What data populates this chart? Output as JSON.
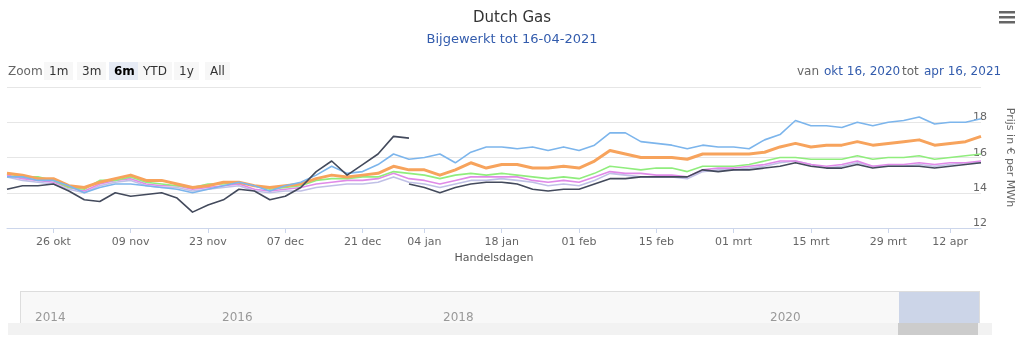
{
  "chart_data": {
    "type": "line",
    "title": "Dutch Gas",
    "subtitle": "Bijgewerkt tot 16-04-2021",
    "xlabel": "Handelsdagen",
    "ylabel": "Prijs in € per MWh",
    "categories": [
      null,
      null,
      null,
      "26 okt",
      null,
      null,
      null,
      null,
      "09 nov",
      null,
      null,
      null,
      null,
      "23 nov",
      null,
      null,
      null,
      null,
      "07 dec",
      null,
      null,
      null,
      null,
      "21 dec",
      null,
      null,
      null,
      "04 jan",
      null,
      null,
      null,
      null,
      "18 jan",
      null,
      null,
      null,
      null,
      "01 feb",
      null,
      null,
      null,
      null,
      "15 feb",
      null,
      null,
      null,
      null,
      "01 mrt",
      null,
      null,
      null,
      null,
      "15 mrt",
      null,
      null,
      null,
      null,
      "29 mrt",
      null,
      null,
      null,
      "12 apr",
      null,
      null
    ],
    "series": [
      {
        "color": "#c0c0e6",
        "values": [
          14.9,
          14.7,
          14.6,
          14.5,
          14.2,
          14.0,
          14.4,
          14.6,
          14.7,
          14.4,
          14.3,
          14.3,
          14.1,
          14.2,
          14.3,
          14.4,
          14.1,
          14.0,
          14.1,
          14.1,
          14.3,
          14.4,
          14.5,
          14.5,
          14.6,
          14.9,
          14.6,
          14.5,
          14.3,
          14.5,
          14.7,
          14.7,
          14.8,
          14.7,
          14.6,
          14.4,
          14.5,
          14.4,
          14.7,
          15.1,
          15.0,
          14.9,
          14.9,
          14.9,
          14.8,
          15.2,
          15.3,
          15.3,
          15.4,
          15.5,
          15.7,
          15.8,
          15.6,
          15.4,
          15.5,
          15.7,
          15.5,
          15.5,
          15.5,
          15.6,
          15.5,
          15.6,
          15.7,
          15.7
        ]
      },
      {
        "color": "#e08ae8",
        "values": [
          15.0,
          14.8,
          14.7,
          14.6,
          14.3,
          14.1,
          14.5,
          14.7,
          14.8,
          14.5,
          14.4,
          14.4,
          14.2,
          14.3,
          14.4,
          14.5,
          14.2,
          14.1,
          14.2,
          14.3,
          14.5,
          14.6,
          14.7,
          14.7,
          14.8,
          15.1,
          14.8,
          14.7,
          14.5,
          14.7,
          14.9,
          14.9,
          14.9,
          14.9,
          14.7,
          14.6,
          14.7,
          14.6,
          14.9,
          15.2,
          15.1,
          15.1,
          15.0,
          15.0,
          14.9,
          15.3,
          15.4,
          15.4,
          15.5,
          15.6,
          15.8,
          15.8,
          15.6,
          15.5,
          15.6,
          15.8,
          15.5,
          15.6,
          15.6,
          15.7,
          15.6,
          15.7,
          15.7,
          15.8
        ]
      },
      {
        "color": "#90ed7d",
        "values": [
          15.1,
          14.9,
          14.9,
          14.7,
          14.3,
          14.2,
          14.7,
          14.7,
          14.9,
          14.6,
          14.5,
          14.4,
          14.3,
          14.5,
          14.5,
          14.6,
          14.4,
          14.2,
          14.3,
          14.4,
          14.7,
          14.8,
          14.8,
          14.9,
          14.9,
          15.2,
          15.1,
          15.0,
          14.8,
          15.0,
          15.1,
          15.0,
          15.1,
          15.0,
          14.9,
          14.8,
          14.9,
          14.8,
          15.1,
          15.5,
          15.4,
          15.3,
          15.4,
          15.4,
          15.2,
          15.5,
          15.5,
          15.5,
          15.6,
          15.8,
          16.0,
          16.0,
          15.9,
          15.9,
          15.9,
          16.1,
          15.9,
          16.0,
          16.0,
          16.1,
          15.9,
          16.0,
          16.1,
          16.2
        ]
      },
      {
        "color": "#f7a35c",
        "values": [
          15.1,
          15.0,
          14.8,
          14.8,
          14.4,
          14.3,
          14.6,
          14.8,
          15.0,
          14.7,
          14.7,
          14.5,
          14.3,
          14.4,
          14.6,
          14.6,
          14.4,
          14.3,
          14.4,
          14.5,
          14.8,
          15.0,
          14.9,
          15.0,
          15.1,
          15.5,
          15.3,
          15.3,
          15.0,
          15.3,
          15.7,
          15.4,
          15.6,
          15.6,
          15.4,
          15.4,
          15.5,
          15.4,
          15.8,
          16.4,
          16.2,
          16.0,
          16.0,
          16.0,
          15.9,
          16.2,
          16.2,
          16.2,
          16.2,
          16.3,
          16.6,
          16.8,
          16.6,
          16.7,
          16.7,
          16.9,
          16.7,
          16.8,
          16.9,
          17.0,
          16.7,
          16.8,
          16.9,
          17.2
        ]
      },
      {
        "color": "#7cb5ec",
        "values": [
          14.9,
          14.9,
          14.7,
          14.7,
          14.4,
          14.0,
          14.3,
          14.5,
          14.5,
          14.4,
          14.3,
          14.2,
          14.0,
          14.2,
          14.4,
          14.6,
          14.4,
          14.1,
          14.4,
          14.6,
          15.0,
          15.5,
          15.1,
          15.2,
          15.6,
          16.2,
          15.9,
          16.0,
          16.2,
          15.7,
          16.3,
          16.6,
          16.6,
          16.5,
          16.6,
          16.4,
          16.6,
          16.4,
          16.7,
          17.4,
          17.4,
          16.9,
          16.8,
          16.7,
          16.5,
          16.7,
          16.6,
          16.6,
          16.5,
          17.0,
          17.3,
          18.1,
          17.8,
          17.8,
          17.7,
          18.0,
          17.8,
          18.0,
          18.1,
          18.3,
          17.9,
          18.0,
          18.0,
          18.2
        ]
      },
      {
        "color": "#434a5c",
        "values": [
          14.2,
          14.4,
          14.4,
          14.5,
          14.1,
          13.6,
          13.5,
          14.0,
          13.8,
          13.9,
          14.0,
          13.7,
          12.9,
          13.3,
          13.6,
          14.2,
          14.1,
          13.6,
          13.8,
          14.3,
          15.2,
          15.8,
          15.0,
          15.6,
          16.2,
          17.2,
          17.1,
          null,
          null,
          null,
          null,
          null,
          null,
          null,
          null,
          null,
          null,
          null,
          null,
          null,
          null,
          null,
          null,
          null,
          null,
          null,
          null,
          null,
          null,
          null,
          null,
          null,
          null,
          null,
          null,
          null,
          null,
          null,
          null,
          null,
          null,
          null,
          null,
          null
        ]
      },
      {
        "color": "#434a5c",
        "values": [
          null,
          null,
          null,
          null,
          null,
          null,
          null,
          null,
          null,
          null,
          null,
          null,
          null,
          null,
          null,
          null,
          null,
          null,
          null,
          null,
          null,
          null,
          null,
          null,
          null,
          null,
          14.5,
          14.3,
          14.0,
          14.3,
          14.5,
          14.6,
          14.6,
          14.5,
          14.2,
          14.1,
          14.2,
          14.2,
          14.5,
          14.8,
          14.8,
          14.9,
          14.9,
          14.9,
          14.9,
          15.3,
          15.2,
          15.3,
          15.3,
          15.4,
          15.5,
          15.7,
          15.5,
          15.4,
          15.4,
          15.6,
          15.4,
          15.5,
          15.5,
          15.5,
          15.4,
          15.5,
          15.6,
          15.7
        ]
      }
    ],
    "ylim": [
      12,
      20
    ],
    "yticks": [
      12,
      14,
      16,
      18,
      {
        "value": 20,
        "label": null
      }
    ],
    "grid": "y",
    "marker": "none",
    "annotations": [
      "Zoom",
      "1m",
      "3m",
      "6m",
      "YTD",
      "1y",
      "All",
      "van",
      "okt 16, 2020",
      "tot",
      "apr 16, 2021",
      "2014",
      "2016",
      "2018",
      "2020"
    ]
  }
}
